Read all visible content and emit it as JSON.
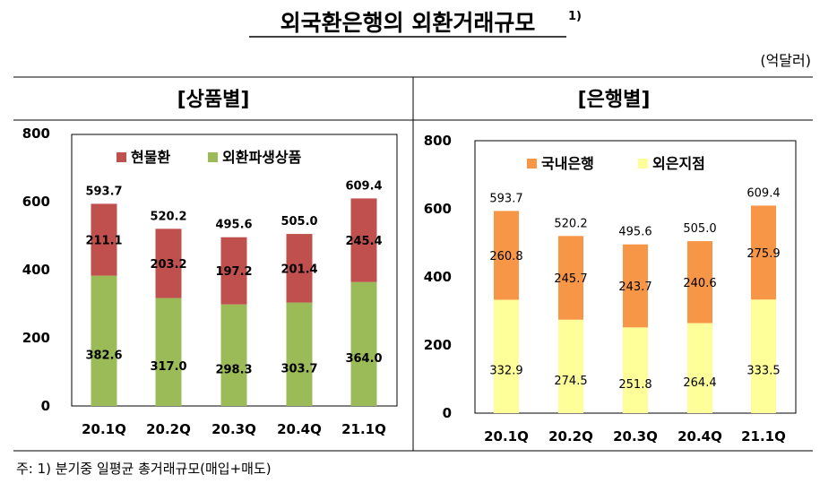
{
  "title": "외국환은행의  외환거래규모",
  "title_sup": "1)",
  "unit": "(억달러)",
  "footnote": "주:  1)  분기중  일평균  총거래규모(매입+매도)",
  "chart_data": [
    {
      "type": "bar",
      "stacked": true,
      "title": "[상품별]",
      "categories": [
        "20.1Q",
        "20.2Q",
        "20.3Q",
        "20.4Q",
        "21.1Q"
      ],
      "ylim": [
        0,
        800
      ],
      "yticks": [
        "0",
        "200",
        "400",
        "600",
        "800"
      ],
      "grid": false,
      "legend": "top",
      "totals": [
        "593.7",
        "520.2",
        "495.6",
        "505.0",
        "609.4"
      ],
      "series": [
        {
          "name": "외환파생상품",
          "color": "#9bbb59",
          "values": [
            382.6,
            317.0,
            298.3,
            303.7,
            364.0
          ],
          "labels": [
            "382.6",
            "317.0",
            "298.3",
            "303.7",
            "364.0"
          ]
        },
        {
          "name": "현물환",
          "color": "#c0504d",
          "values": [
            211.1,
            203.2,
            197.2,
            201.4,
            245.4
          ],
          "labels": [
            "211.1",
            "203.2",
            "197.2",
            "201.4",
            "245.4"
          ]
        }
      ]
    },
    {
      "type": "bar",
      "stacked": true,
      "title": "[은행별]",
      "categories": [
        "20.1Q",
        "20.2Q",
        "20.3Q",
        "20.4Q",
        "21.1Q"
      ],
      "ylim": [
        0,
        800
      ],
      "yticks": [
        "0",
        "200",
        "400",
        "600",
        "800"
      ],
      "grid": false,
      "legend": "top",
      "totals": [
        "593.7",
        "520.2",
        "495.6",
        "505.0",
        "609.4"
      ],
      "series": [
        {
          "name": "외은지점",
          "color": "#ffff99",
          "values": [
            332.9,
            274.5,
            251.8,
            264.4,
            333.5
          ],
          "labels": [
            "332.9",
            "274.5",
            "251.8",
            "264.4",
            "333.5"
          ]
        },
        {
          "name": "국내은행",
          "color": "#f79646",
          "values": [
            260.8,
            245.7,
            243.7,
            240.6,
            275.9
          ],
          "labels": [
            "260.8",
            "245.7",
            "243.7",
            "240.6",
            "275.9"
          ]
        }
      ]
    }
  ]
}
